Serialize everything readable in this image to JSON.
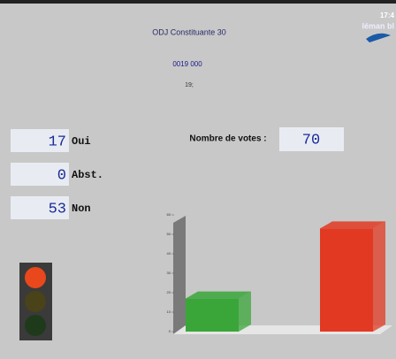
{
  "header": {
    "title": "ODJ Constituante 30",
    "code": "0019 000",
    "item": "19;",
    "clock": "17:4",
    "logo": "léman bl"
  },
  "tallies": [
    {
      "count": 17,
      "label": "Oui"
    },
    {
      "count": 0,
      "label": "Abst."
    },
    {
      "count": 53,
      "label": "Non"
    }
  ],
  "total": {
    "label": "Nombre de votes :",
    "value": 70
  },
  "chart_data": {
    "type": "bar3d",
    "categories": [
      null,
      null,
      null
    ],
    "values": [
      17,
      0,
      53
    ],
    "colors": [
      "#3aa63a",
      "#9a9a9a",
      "#e23a22"
    ],
    "ylim": [
      0,
      60
    ],
    "yticks": [
      0,
      10,
      20,
      30,
      40,
      50,
      60
    ]
  }
}
